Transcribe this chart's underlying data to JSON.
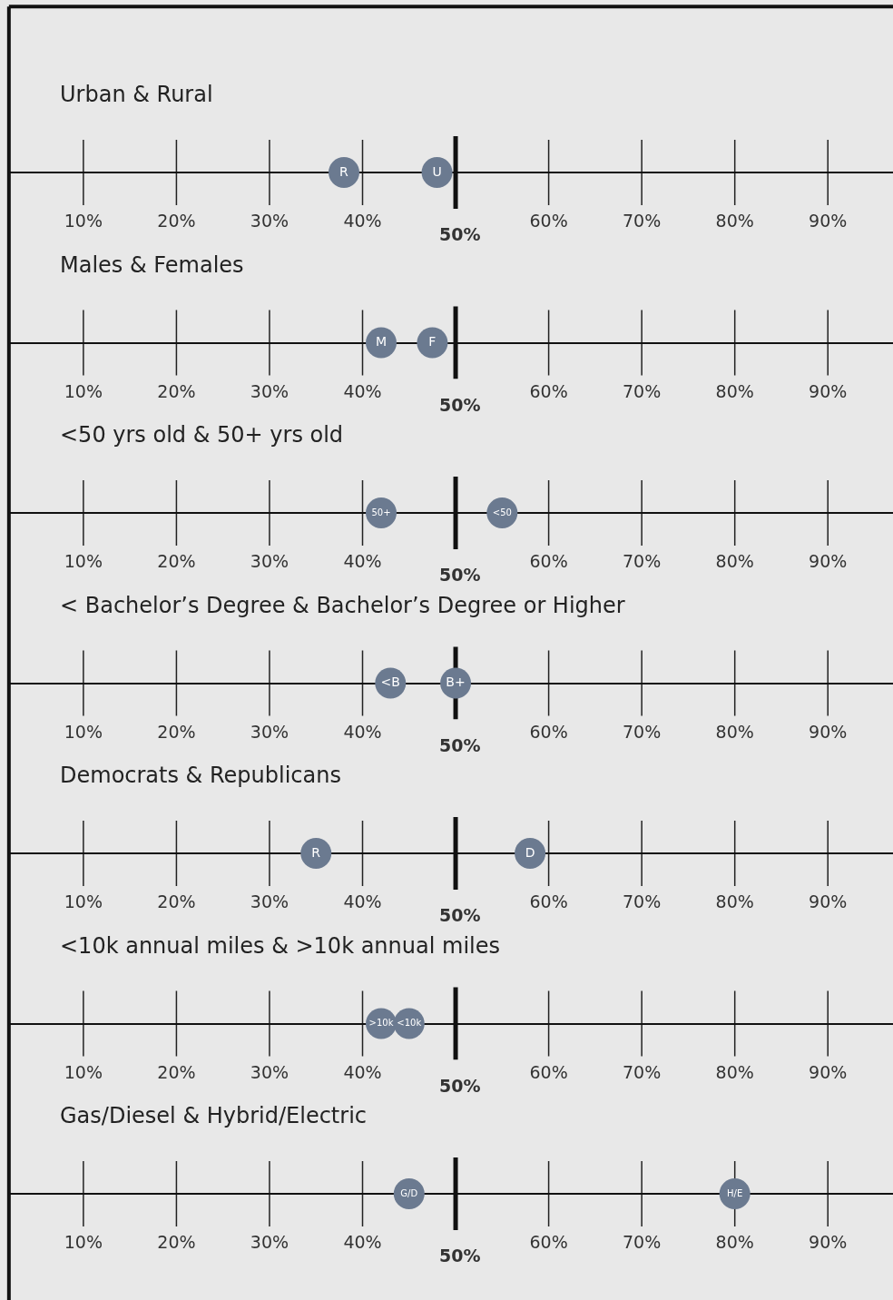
{
  "chart_data": [
    {
      "type": "scatter",
      "orientation": "horizontal",
      "title": "Urban & Rural",
      "categories": [
        null
      ],
      "xlim": [
        2,
        97
      ],
      "xticks": [
        {
          "value": 10,
          "label": "10%"
        },
        {
          "value": 20,
          "label": "20%"
        },
        {
          "value": 30,
          "label": "30%"
        },
        {
          "value": 40,
          "label": "40%"
        },
        {
          "value": 60,
          "label": "60%"
        },
        {
          "value": 70,
          "label": "70%"
        },
        {
          "value": 80,
          "label": "80%"
        },
        {
          "value": 90,
          "label": "90%"
        }
      ],
      "ref_lines": [
        {
          "axis": "x",
          "value": 50,
          "label": "50%"
        }
      ],
      "tick_labels": "x",
      "marker": "circle",
      "legend": false,
      "series": [
        {
          "name": "R",
          "color": "#6b7a90",
          "values": [
            38
          ]
        },
        {
          "name": "U",
          "color": "#6b7a90",
          "values": [
            48
          ]
        }
      ]
    },
    {
      "type": "scatter",
      "orientation": "horizontal",
      "title": "Males & Females",
      "categories": [
        null
      ],
      "xlim": [
        2,
        97
      ],
      "xticks": [
        {
          "value": 10,
          "label": "10%"
        },
        {
          "value": 20,
          "label": "20%"
        },
        {
          "value": 30,
          "label": "30%"
        },
        {
          "value": 40,
          "label": "40%"
        },
        {
          "value": 60,
          "label": "60%"
        },
        {
          "value": 70,
          "label": "70%"
        },
        {
          "value": 80,
          "label": "80%"
        },
        {
          "value": 90,
          "label": "90%"
        }
      ],
      "ref_lines": [
        {
          "axis": "x",
          "value": 50,
          "label": "50%"
        }
      ],
      "tick_labels": "x",
      "marker": "circle",
      "legend": false,
      "series": [
        {
          "name": "M",
          "color": "#6b7a90",
          "values": [
            42
          ]
        },
        {
          "name": "F",
          "color": "#6b7a90",
          "values": [
            47.5
          ]
        }
      ]
    },
    {
      "type": "scatter",
      "orientation": "horizontal",
      "title": "<50 yrs old & 50+ yrs old",
      "categories": [
        null
      ],
      "xlim": [
        2,
        97
      ],
      "xticks": [
        {
          "value": 10,
          "label": "10%"
        },
        {
          "value": 20,
          "label": "20%"
        },
        {
          "value": 30,
          "label": "30%"
        },
        {
          "value": 40,
          "label": "40%"
        },
        {
          "value": 60,
          "label": "60%"
        },
        {
          "value": 70,
          "label": "70%"
        },
        {
          "value": 80,
          "label": "80%"
        },
        {
          "value": 90,
          "label": "90%"
        }
      ],
      "ref_lines": [
        {
          "axis": "x",
          "value": 50,
          "label": "50%"
        }
      ],
      "tick_labels": "x",
      "marker": "circle",
      "legend": false,
      "series": [
        {
          "name": "50+",
          "color": "#6b7a90",
          "values": [
            42
          ]
        },
        {
          "name": "<50",
          "color": "#6b7a90",
          "values": [
            55
          ]
        }
      ]
    },
    {
      "type": "scatter",
      "orientation": "horizontal",
      "title": "< Bachelor’s Degree & Bachelor’s Degree or Higher",
      "categories": [
        null
      ],
      "xlim": [
        2,
        97
      ],
      "xticks": [
        {
          "value": 10,
          "label": "10%"
        },
        {
          "value": 20,
          "label": "20%"
        },
        {
          "value": 30,
          "label": "30%"
        },
        {
          "value": 40,
          "label": "40%"
        },
        {
          "value": 60,
          "label": "60%"
        },
        {
          "value": 70,
          "label": "70%"
        },
        {
          "value": 80,
          "label": "80%"
        },
        {
          "value": 90,
          "label": "90%"
        }
      ],
      "ref_lines": [
        {
          "axis": "x",
          "value": 50,
          "label": "50%"
        }
      ],
      "tick_labels": "x",
      "marker": "circle",
      "legend": false,
      "series": [
        {
          "name": "<B",
          "color": "#6b7a90",
          "values": [
            43
          ]
        },
        {
          "name": "B+",
          "color": "#6b7a90",
          "values": [
            50
          ]
        }
      ]
    },
    {
      "type": "scatter",
      "orientation": "horizontal",
      "title": "Democrats & Republicans",
      "categories": [
        null
      ],
      "xlim": [
        2,
        97
      ],
      "xticks": [
        {
          "value": 10,
          "label": "10%"
        },
        {
          "value": 20,
          "label": "20%"
        },
        {
          "value": 30,
          "label": "30%"
        },
        {
          "value": 40,
          "label": "40%"
        },
        {
          "value": 60,
          "label": "60%"
        },
        {
          "value": 70,
          "label": "70%"
        },
        {
          "value": 80,
          "label": "80%"
        },
        {
          "value": 90,
          "label": "90%"
        }
      ],
      "ref_lines": [
        {
          "axis": "x",
          "value": 50,
          "label": "50%"
        }
      ],
      "tick_labels": "x",
      "marker": "circle",
      "legend": false,
      "series": [
        {
          "name": "R",
          "color": "#6b7a90",
          "values": [
            35
          ]
        },
        {
          "name": "D",
          "color": "#6b7a90",
          "values": [
            58
          ]
        }
      ]
    },
    {
      "type": "scatter",
      "orientation": "horizontal",
      "title": "<10k annual miles & >10k annual miles",
      "categories": [
        null
      ],
      "xlim": [
        2,
        97
      ],
      "xticks": [
        {
          "value": 10,
          "label": "10%"
        },
        {
          "value": 20,
          "label": "20%"
        },
        {
          "value": 30,
          "label": "30%"
        },
        {
          "value": 40,
          "label": "40%"
        },
        {
          "value": 60,
          "label": "60%"
        },
        {
          "value": 70,
          "label": "70%"
        },
        {
          "value": 80,
          "label": "80%"
        },
        {
          "value": 90,
          "label": "90%"
        }
      ],
      "ref_lines": [
        {
          "axis": "x",
          "value": 50,
          "label": "50%"
        }
      ],
      "tick_labels": "x",
      "marker": "circle",
      "legend": false,
      "series": [
        {
          "name": ">10k",
          "color": "#6b7a90",
          "values": [
            42
          ]
        },
        {
          "name": "<10k",
          "color": "#6b7a90",
          "values": [
            45
          ]
        }
      ]
    },
    {
      "type": "scatter",
      "orientation": "horizontal",
      "title": "Gas/Diesel & Hybrid/Electric",
      "categories": [
        null
      ],
      "xlim": [
        2,
        97
      ],
      "xticks": [
        {
          "value": 10,
          "label": "10%"
        },
        {
          "value": 20,
          "label": "20%"
        },
        {
          "value": 30,
          "label": "30%"
        },
        {
          "value": 40,
          "label": "40%"
        },
        {
          "value": 60,
          "label": "60%"
        },
        {
          "value": 70,
          "label": "70%"
        },
        {
          "value": 80,
          "label": "80%"
        },
        {
          "value": 90,
          "label": "90%"
        }
      ],
      "ref_lines": [
        {
          "axis": "x",
          "value": 50,
          "label": "50%"
        }
      ],
      "tick_labels": "x",
      "marker": "circle",
      "legend": false,
      "series": [
        {
          "name": "G/D",
          "color": "#6b7a90",
          "values": [
            45
          ]
        },
        {
          "name": "H/E",
          "color": "#6b7a90",
          "values": [
            80
          ]
        }
      ]
    }
  ]
}
